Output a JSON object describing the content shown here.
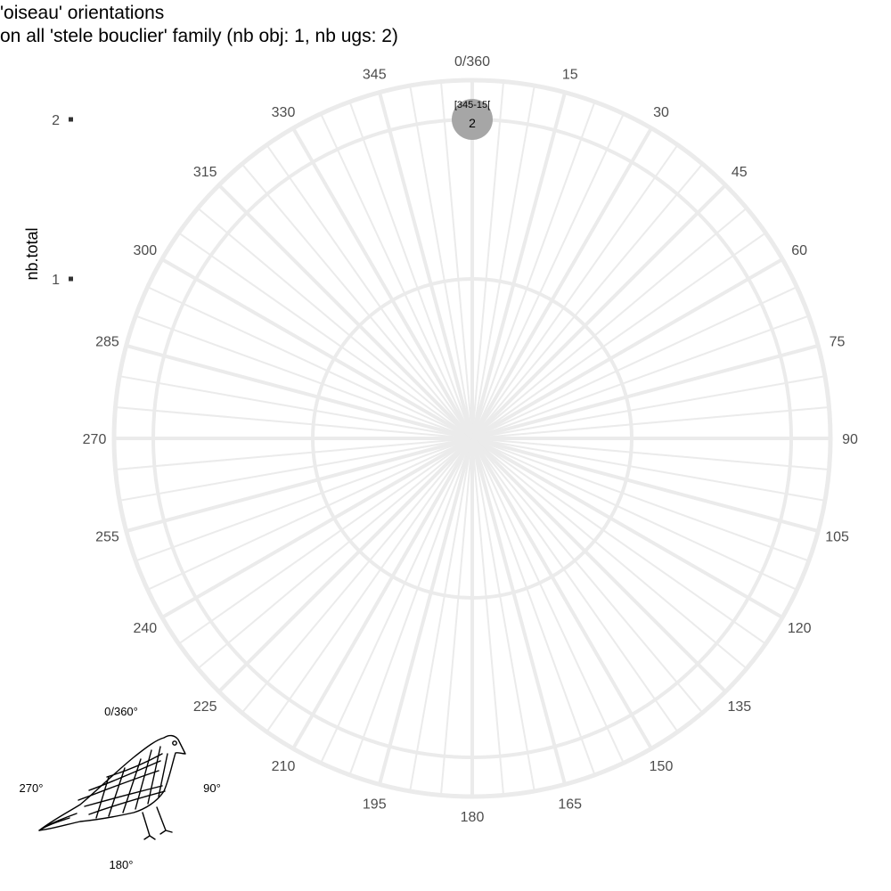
{
  "chart_data": {
    "type": "polar-scatter",
    "title": "'oiseau' orientations",
    "subtitle": "on all 'stele bouclier' family (nb obj: 1, nb ugs: 2)",
    "ylabel": "nb.total",
    "radial_ticks": [
      1,
      2
    ],
    "radial_range": [
      0,
      2
    ],
    "angle_step_deg": 15,
    "angle_labels": [
      "0/360",
      "15",
      "30",
      "45",
      "60",
      "75",
      "90",
      "105",
      "120",
      "135",
      "150",
      "165",
      "180",
      "195",
      "210",
      "225",
      "240",
      "255",
      "270",
      "285",
      "300",
      "315",
      "330",
      "345"
    ],
    "points": [
      {
        "angle_deg": 0,
        "value": 2,
        "bin_label": "[345-15[",
        "value_label": "2",
        "color": "#a6a6a6"
      }
    ],
    "grid": true,
    "grid_color": "#ebebeb"
  },
  "legend": {
    "top": "0/360°",
    "right": "90°",
    "bottom": "180°",
    "left": "270°",
    "icon": "bird-drawing"
  }
}
